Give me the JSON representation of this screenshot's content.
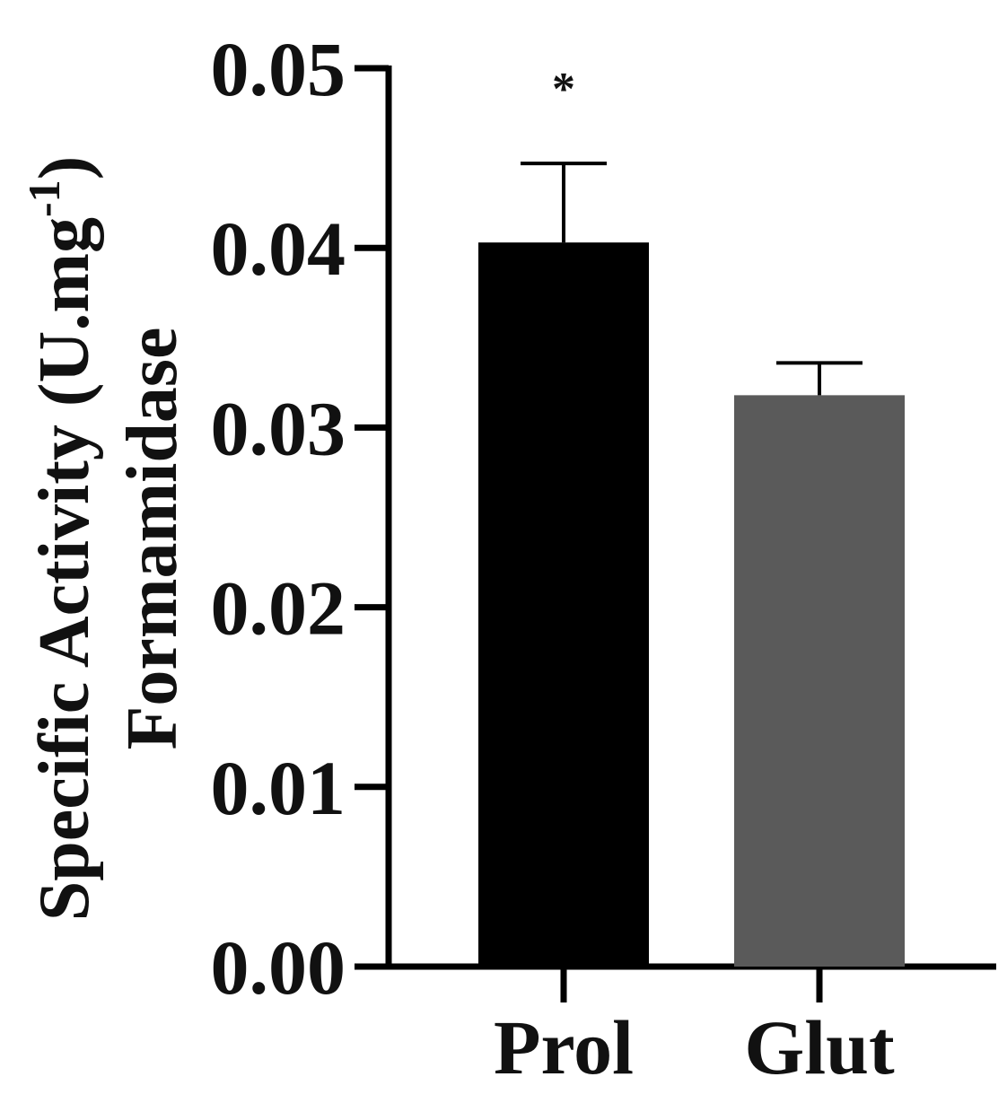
{
  "chart_data": {
    "type": "bar",
    "categories": [
      "Prol",
      "Glut"
    ],
    "values": [
      0.0403,
      0.0318
    ],
    "errors": [
      0.0044,
      0.0018
    ],
    "colors": [
      "#000000",
      "#5a5a5a"
    ],
    "annotations": [
      "*",
      ""
    ],
    "ylabel_line1": "Specific Activity (U.mg",
    "ylabel_sup": "-1",
    "ylabel_close": ")",
    "ylabel_line2": "Formamidase",
    "ylim": [
      0,
      0.05
    ],
    "yticks": [
      "0.00",
      "0.01",
      "0.02",
      "0.03",
      "0.04",
      "0.05"
    ],
    "grid": false
  }
}
